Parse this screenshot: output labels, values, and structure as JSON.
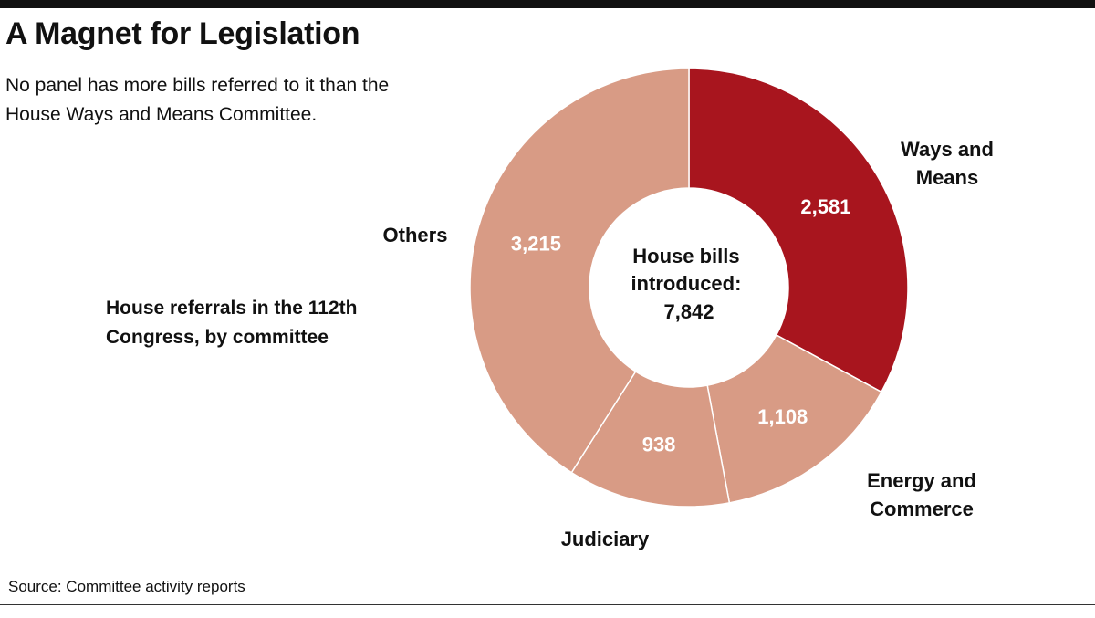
{
  "header": {
    "title": "A Magnet for Legislation",
    "subtitle": "No panel has more bills referred to it than the House Ways and Means Committee."
  },
  "footer": {
    "source": "Source: Committee activity reports"
  },
  "chart_data": {
    "type": "pie",
    "variant": "donut",
    "label": "House referrals in the 112th Congress, by committee",
    "center_text": [
      "House bills",
      "introduced:",
      "7,842"
    ],
    "total": 7842,
    "slices": [
      {
        "name": "Ways and Means",
        "name_lines": [
          "Ways and",
          "Means"
        ],
        "value": 2581,
        "value_label": "2,581",
        "color": "#a8151e"
      },
      {
        "name": "Energy and Commerce",
        "name_lines": [
          "Energy and",
          "Commerce"
        ],
        "value": 1108,
        "value_label": "1,108",
        "color": "#d89b85"
      },
      {
        "name": "Judiciary",
        "name_lines": [
          "Judiciary"
        ],
        "value": 938,
        "value_label": "938",
        "color": "#d89b85"
      },
      {
        "name": "Others",
        "name_lines": [
          "Others"
        ],
        "value": 3215,
        "value_label": "3,215",
        "color": "#d89b85"
      }
    ]
  }
}
